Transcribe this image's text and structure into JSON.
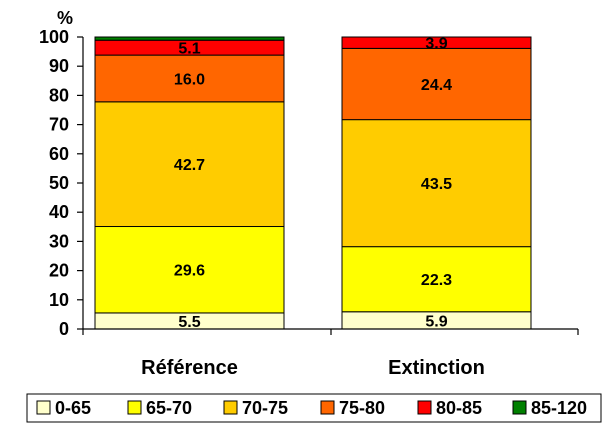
{
  "chart_data": {
    "type": "bar",
    "stacked": true,
    "ylabel": "%",
    "ylim": [
      0,
      100
    ],
    "yticks": [
      0,
      10,
      20,
      30,
      40,
      50,
      60,
      70,
      80,
      90,
      100
    ],
    "categories": [
      "Référence",
      "Extinction"
    ],
    "series": [
      {
        "name": "0-65",
        "color": "#FFFFCC",
        "values": [
          5.5,
          5.9
        ],
        "labels": [
          "5.5",
          "5.9"
        ]
      },
      {
        "name": "65-70",
        "color": "#FFFF00",
        "values": [
          29.6,
          22.3
        ],
        "labels": [
          "29.6",
          "22.3"
        ]
      },
      {
        "name": "70-75",
        "color": "#FFCC00",
        "values": [
          42.7,
          43.5
        ],
        "labels": [
          "42.7",
          "43.5"
        ]
      },
      {
        "name": "75-80",
        "color": "#FF6600",
        "values": [
          16.0,
          24.4
        ],
        "labels": [
          "16.0",
          "24.4"
        ]
      },
      {
        "name": "80-85",
        "color": "#FF0000",
        "values": [
          5.1,
          3.9
        ],
        "labels": [
          "5.1",
          "3.9"
        ]
      },
      {
        "name": "85-120",
        "color": "#008000",
        "values": [
          1.1,
          0
        ],
        "labels": [
          "",
          ""
        ]
      }
    ],
    "grid": false,
    "legend_position": "bottom"
  }
}
